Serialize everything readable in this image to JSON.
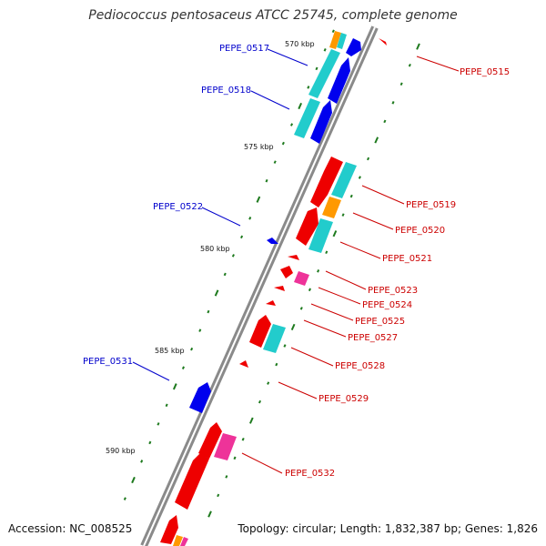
{
  "title": "Pediococcus pentosaceus ATCC 25745, complete genome",
  "footer": {
    "accession": "Accession: NC_008525",
    "topology": "Topology: circular; Length: 1,832,387 bp; Genes: 1,826"
  },
  "colors": {
    "backbone": "#8a8a8a",
    "tick": "#1e7a1e",
    "label_blue": "#0000cc",
    "label_red": "#cc0000",
    "forward_gene": "#0000ee",
    "reverse_gene": "#ee0000",
    "cyan_feature": "#22cccc",
    "orange_feature": "#ff9900",
    "pink_feature": "#ee3399"
  },
  "scale_labels": [
    "570 kbp",
    "575 kbp",
    "580 kbp",
    "585 kbp",
    "590 kbp"
  ],
  "gene_labels": [
    {
      "text": "PEPE_0517",
      "strand": "forward"
    },
    {
      "text": "PEPE_0518",
      "strand": "forward"
    },
    {
      "text": "PEPE_0522",
      "strand": "forward"
    },
    {
      "text": "PEPE_0531",
      "strand": "forward"
    },
    {
      "text": "PEPE_0515",
      "strand": "reverse"
    },
    {
      "text": "PEPE_0519",
      "strand": "reverse"
    },
    {
      "text": "PEPE_0520",
      "strand": "reverse"
    },
    {
      "text": "PEPE_0521",
      "strand": "reverse"
    },
    {
      "text": "PEPE_0523",
      "strand": "reverse"
    },
    {
      "text": "PEPE_0524",
      "strand": "reverse"
    },
    {
      "text": "PEPE_0525",
      "strand": "reverse"
    },
    {
      "text": "PEPE_0527",
      "strand": "reverse"
    },
    {
      "text": "PEPE_0528",
      "strand": "reverse"
    },
    {
      "text": "PEPE_0529",
      "strand": "reverse"
    },
    {
      "text": "PEPE_0532",
      "strand": "reverse"
    }
  ]
}
